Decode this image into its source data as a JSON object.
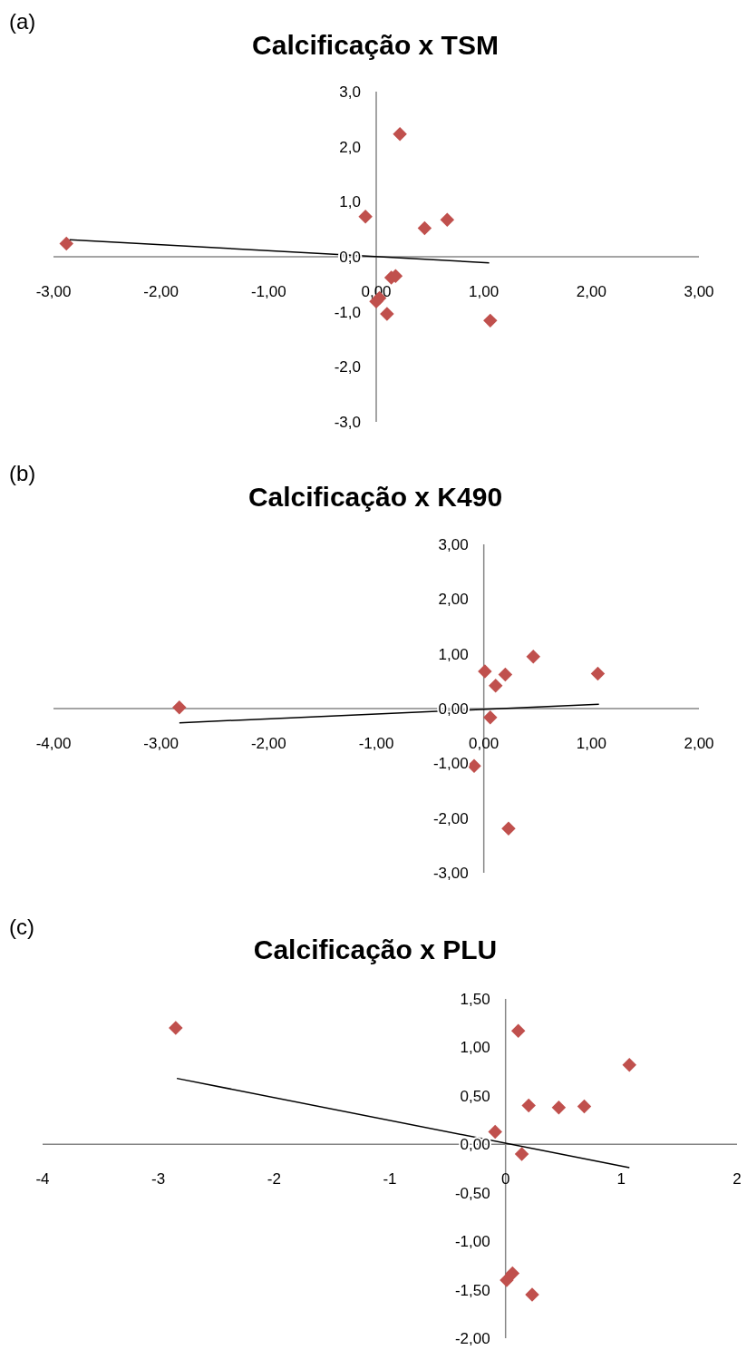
{
  "chart_data": [
    {
      "type": "scatter",
      "title": "Calcificação x TSM",
      "annotations": [
        "(a)"
      ],
      "marker": "diamond",
      "grid": false,
      "xlim": [
        -3,
        3
      ],
      "ylim": [
        -3,
        3
      ],
      "xticks": [
        {
          "value": -3,
          "label": "-3,00"
        },
        {
          "value": -2,
          "label": "-2,00"
        },
        {
          "value": -1,
          "label": "-1,00"
        },
        {
          "value": 0,
          "label": "0,00"
        },
        {
          "value": 1,
          "label": "1,00"
        },
        {
          "value": 2,
          "label": "2,00"
        },
        {
          "value": 3,
          "label": "3,00"
        }
      ],
      "yticks": [
        {
          "value": -3,
          "label": "-3,0"
        },
        {
          "value": -2,
          "label": "-2,0"
        },
        {
          "value": -1,
          "label": "-1,0"
        },
        {
          "value": 0,
          "label": "0,0"
        },
        {
          "value": 1,
          "label": "1,0"
        },
        {
          "value": 2,
          "label": "2,0"
        },
        {
          "value": 3,
          "label": "3,0"
        }
      ],
      "series": [
        {
          "color": "#c0504d",
          "x": [
            -2.88,
            0.22,
            -0.1,
            0.45,
            0.66,
            0.14,
            0.18,
            0.0,
            0.03,
            0.1,
            1.06
          ],
          "values": [
            0.24,
            2.23,
            0.73,
            0.52,
            0.67,
            -0.38,
            -0.35,
            -0.81,
            -0.75,
            -1.04,
            -1.16
          ]
        },
        {
          "type": "line",
          "color": "#000000",
          "marker": "none",
          "x": [
            -2.85,
            1.05
          ],
          "values": [
            0.31,
            -0.11
          ]
        }
      ]
    },
    {
      "type": "scatter",
      "title": "Calcificação x K490",
      "annotations": [
        "(b)"
      ],
      "marker": "diamond",
      "grid": false,
      "xlim": [
        -4,
        2
      ],
      "ylim": [
        -3,
        3
      ],
      "xticks": [
        {
          "value": -4,
          "label": "-4,00"
        },
        {
          "value": -3,
          "label": "-3,00"
        },
        {
          "value": -2,
          "label": "-2,00"
        },
        {
          "value": -1,
          "label": "-1,00"
        },
        {
          "value": 0,
          "label": "0,00"
        },
        {
          "value": 1,
          "label": "1,00"
        },
        {
          "value": 2,
          "label": "2,00"
        }
      ],
      "yticks": [
        {
          "value": -3,
          "label": "-3,00"
        },
        {
          "value": -2,
          "label": "-2,00"
        },
        {
          "value": -1,
          "label": "-1,00"
        },
        {
          "value": 0,
          "label": "0,00"
        },
        {
          "value": 1,
          "label": "1,00"
        },
        {
          "value": 2,
          "label": "2,00"
        },
        {
          "value": 3,
          "label": "3,00"
        }
      ],
      "series": [
        {
          "color": "#c0504d",
          "x": [
            -2.83,
            0.46,
            0.01,
            0.2,
            0.11,
            1.06,
            0.06,
            -0.09,
            0.23
          ],
          "values": [
            0.02,
            0.95,
            0.68,
            0.62,
            0.42,
            0.64,
            -0.16,
            -1.05,
            -2.19
          ]
        },
        {
          "type": "line",
          "color": "#000000",
          "marker": "none",
          "x": [
            -2.83,
            1.07
          ],
          "values": [
            -0.26,
            0.08
          ]
        }
      ]
    },
    {
      "type": "scatter",
      "title": "Calcificação x PLU",
      "annotations": [
        "(c)"
      ],
      "marker": "diamond",
      "grid": false,
      "xlim": [
        -4,
        2
      ],
      "ylim": [
        -2,
        1.5
      ],
      "xticks": [
        -4,
        -3,
        -2,
        -1,
        0,
        1,
        2
      ],
      "yticks": [
        {
          "value": -2,
          "label": "-2,00"
        },
        {
          "value": -1.5,
          "label": "-1,50"
        },
        {
          "value": -1,
          "label": "-1,00"
        },
        {
          "value": -0.5,
          "label": "-0,50"
        },
        {
          "value": 0,
          "label": "0,00"
        },
        {
          "value": 0.5,
          "label": "0,50"
        },
        {
          "value": 1,
          "label": "1,00"
        },
        {
          "value": 1.5,
          "label": "1,50"
        }
      ],
      "series": [
        {
          "color": "#c0504d",
          "x": [
            -2.85,
            0.11,
            1.07,
            0.2,
            0.46,
            0.68,
            -0.09,
            0.14,
            0.06,
            0.01,
            0.23
          ],
          "values": [
            1.2,
            1.17,
            0.82,
            0.4,
            0.38,
            0.39,
            0.13,
            -0.1,
            -1.33,
            -1.4,
            -1.55
          ]
        },
        {
          "type": "line",
          "color": "#000000",
          "marker": "none",
          "x": [
            -2.84,
            1.07
          ],
          "values": [
            0.68,
            -0.24
          ]
        }
      ]
    }
  ]
}
